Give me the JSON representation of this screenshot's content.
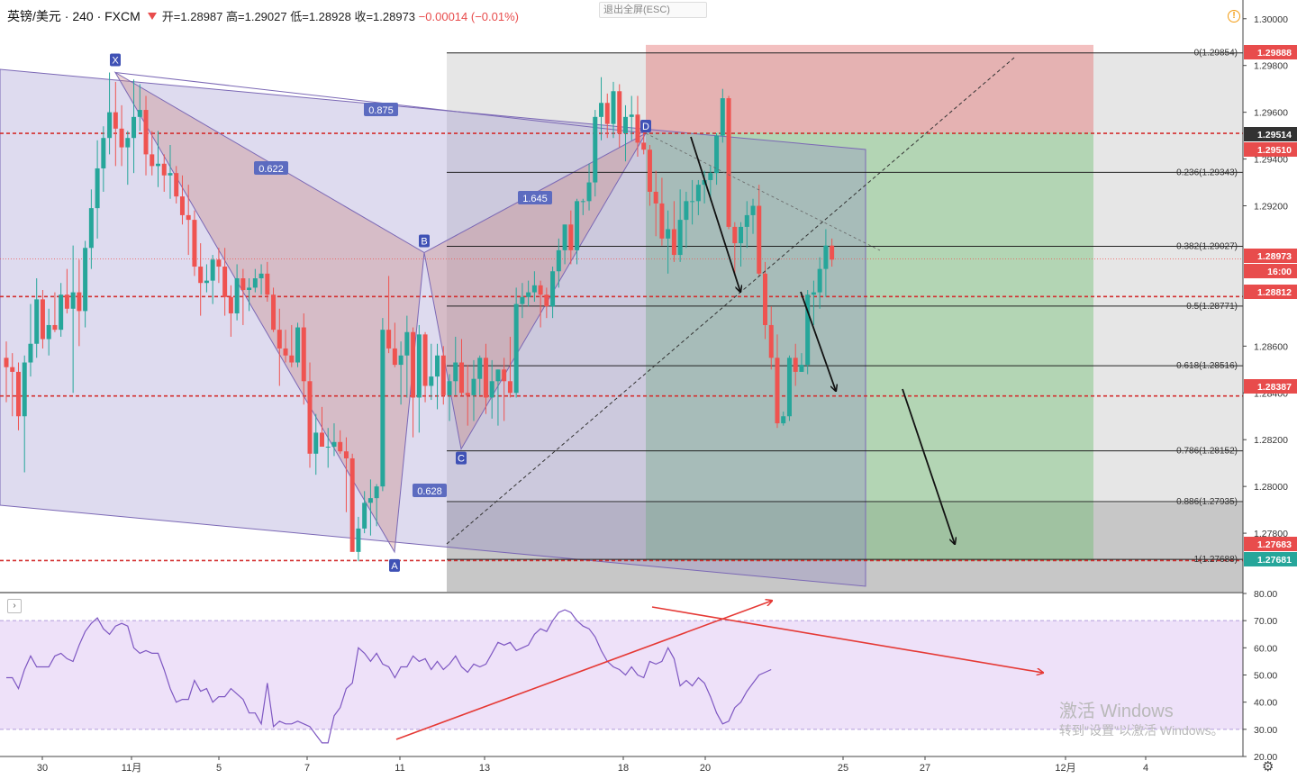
{
  "header": {
    "symbol": "英镑/美元 · 240 · FXCM",
    "open": "开=1.28987",
    "high": "高=1.29027",
    "low": "低=1.28928",
    "close": "收=1.28973",
    "change": "−0.00014 (−0.01%)"
  },
  "exit_fullscreen": "退出全屏(ESC)",
  "collapse_label": "›",
  "watermark": {
    "line1": "激活 Windows",
    "line2": "转到\"设置\"以激活 Windows。"
  },
  "colors": {
    "up": "#26a69a",
    "down": "#ef5350",
    "pattern": "#7b68b5",
    "rsi": "#7e57c2",
    "level": "#d32f2f"
  },
  "chart_data": [
    {
      "type": "candlestick",
      "symbol": "GBP/USD",
      "timeframe": "240",
      "source": "FXCM",
      "ylim": [
        1.2755,
        1.3008
      ],
      "y_ticks": [
        "1.30000",
        "1.29800",
        "1.29600",
        "1.29400",
        "1.29200",
        "1.28600",
        "1.28400",
        "1.28200",
        "1.28000",
        "1.27800"
      ],
      "x_ticks": [
        "30",
        "11月",
        "5",
        "7",
        "11",
        "13",
        "18",
        "20",
        "25",
        "27",
        "12月",
        "4"
      ],
      "price_labels": [
        {
          "value": "1.29888",
          "color": "#e84c4c"
        },
        {
          "value": "1.29514",
          "color": "#333333"
        },
        {
          "value": "1.29510",
          "color": "#e84c4c"
        },
        {
          "value": "1.28973",
          "color": "#e84c4c"
        },
        {
          "value": "16:00",
          "color": "#e84c4c"
        },
        {
          "value": "1.28812",
          "color": "#e84c4c"
        },
        {
          "value": "1.28387",
          "color": "#e84c4c"
        },
        {
          "value": "1.27683",
          "color": "#e84c4c"
        },
        {
          "value": "1.27681",
          "color": "#26a69a"
        }
      ],
      "horizontal_levels": [
        1.2951,
        1.28812,
        1.28387,
        1.27683
      ],
      "fib_levels": [
        {
          "label": "0(1.29854)",
          "value": 1.29854
        },
        {
          "label": "0.236(1.29343)",
          "value": 1.29343
        },
        {
          "label": "0.382(1.29027)",
          "value": 1.29027
        },
        {
          "label": "0.5(1.28771)",
          "value": 1.28771
        },
        {
          "label": "0.618(1.28516)",
          "value": 1.28516
        },
        {
          "label": "0.786(1.28152)",
          "value": 1.28152
        },
        {
          "label": "0.886(1.27935)",
          "value": 1.27935
        },
        {
          "label": "1(1.27688)",
          "value": 1.27688
        }
      ],
      "pattern_points": [
        {
          "label": "X",
          "price": 1.2977
        },
        {
          "label": "A",
          "price": 1.2772
        },
        {
          "label": "B",
          "price": 1.29
        },
        {
          "label": "C",
          "price": 1.2816
        },
        {
          "label": "D",
          "price": 1.2951
        }
      ],
      "pattern_ratios": [
        "0.875",
        "0.622",
        "1.645",
        "0.628"
      ],
      "position": {
        "entry": 1.29514,
        "stop": 1.29888,
        "target": 1.27681
      },
      "candles": [
        [
          1.2855,
          1.2862,
          1.2836,
          1.2851
        ],
        [
          1.2851,
          1.2857,
          1.283,
          1.2849
        ],
        [
          1.2849,
          1.2853,
          1.2824,
          1.283
        ],
        [
          1.283,
          1.2856,
          1.2806,
          1.2853
        ],
        [
          1.2853,
          1.2878,
          1.2847,
          1.2861
        ],
        [
          1.2861,
          1.2889,
          1.2855,
          1.288
        ],
        [
          1.288,
          1.2884,
          1.2859,
          1.2863
        ],
        [
          1.2863,
          1.2876,
          1.2856,
          1.2869
        ],
        [
          1.2869,
          1.2883,
          1.2866,
          1.2867
        ],
        [
          1.2867,
          1.2887,
          1.2864,
          1.2882
        ],
        [
          1.2882,
          1.2893,
          1.2874,
          1.2876
        ],
        [
          1.2876,
          1.2903,
          1.284,
          1.2883
        ],
        [
          1.2883,
          1.2897,
          1.286,
          1.2875
        ],
        [
          1.2875,
          1.2905,
          1.2868,
          1.2902
        ],
        [
          1.2902,
          1.2927,
          1.2893,
          1.2919
        ],
        [
          1.2919,
          1.2948,
          1.2906,
          1.2936
        ],
        [
          1.2936,
          1.2954,
          1.2926,
          1.2949
        ],
        [
          1.2949,
          1.2977,
          1.2942,
          1.296
        ],
        [
          1.296,
          1.2973,
          1.2937,
          1.2953
        ],
        [
          1.2953,
          1.2963,
          1.2937,
          1.2945
        ],
        [
          1.2945,
          1.2952,
          1.2929,
          1.2949
        ],
        [
          1.2949,
          1.2974,
          1.2934,
          1.2958
        ],
        [
          1.2958,
          1.2972,
          1.2952,
          1.2961
        ],
        [
          1.2961,
          1.2967,
          1.2933,
          1.2942
        ],
        [
          1.2942,
          1.2952,
          1.2933,
          1.2937
        ],
        [
          1.2937,
          1.2952,
          1.2928,
          1.2938
        ],
        [
          1.2938,
          1.2942,
          1.2926,
          1.2933
        ],
        [
          1.2933,
          1.2946,
          1.2923,
          1.2934
        ],
        [
          1.2934,
          1.2937,
          1.2921,
          1.2924
        ],
        [
          1.2924,
          1.2933,
          1.2912,
          1.2916
        ],
        [
          1.2916,
          1.2929,
          1.2899,
          1.2914
        ],
        [
          1.2914,
          1.2918,
          1.289,
          1.2894
        ],
        [
          1.2894,
          1.2904,
          1.2873,
          1.2887
        ],
        [
          1.2887,
          1.2895,
          1.2883,
          1.2888
        ],
        [
          1.2888,
          1.2899,
          1.2878,
          1.2897
        ],
        [
          1.2897,
          1.2902,
          1.2887,
          1.2894
        ],
        [
          1.2894,
          1.2902,
          1.2873,
          1.2881
        ],
        [
          1.2881,
          1.2886,
          1.2864,
          1.2874
        ],
        [
          1.2874,
          1.2895,
          1.2871,
          1.2889
        ],
        [
          1.2889,
          1.2893,
          1.2869,
          1.2884
        ],
        [
          1.2884,
          1.2889,
          1.2875,
          1.2885
        ],
        [
          1.2885,
          1.2893,
          1.2883,
          1.2889
        ],
        [
          1.2889,
          1.2895,
          1.2882,
          1.2891
        ],
        [
          1.2891,
          1.2896,
          1.2879,
          1.2882
        ],
        [
          1.2882,
          1.2885,
          1.2866,
          1.2867
        ],
        [
          1.2867,
          1.2876,
          1.2843,
          1.2859
        ],
        [
          1.2859,
          1.2867,
          1.2853,
          1.2856
        ],
        [
          1.2856,
          1.2869,
          1.2851,
          1.2853
        ],
        [
          1.2853,
          1.287,
          1.2851,
          1.2868
        ],
        [
          1.2868,
          1.2874,
          1.2835,
          1.2845
        ],
        [
          1.2845,
          1.2853,
          1.2808,
          1.2814
        ],
        [
          1.2814,
          1.2831,
          1.2805,
          1.2823
        ],
        [
          1.2823,
          1.2834,
          1.2817,
          1.2817
        ],
        [
          1.2817,
          1.2825,
          1.2808,
          1.2817
        ],
        [
          1.2817,
          1.2827,
          1.2813,
          1.2819
        ],
        [
          1.2819,
          1.2824,
          1.2814,
          1.2815
        ],
        [
          1.2815,
          1.2821,
          1.2789,
          1.2812
        ],
        [
          1.2812,
          1.2814,
          1.2773,
          1.2772
        ],
        [
          1.2772,
          1.2787,
          1.2768,
          1.2782
        ],
        [
          1.2782,
          1.2798,
          1.278,
          1.2793
        ],
        [
          1.2793,
          1.2803,
          1.2779,
          1.2795
        ],
        [
          1.2795,
          1.2801,
          1.2783,
          1.28
        ],
        [
          1.28,
          1.2872,
          1.2798,
          1.2867
        ],
        [
          1.2867,
          1.289,
          1.2857,
          1.2859
        ],
        [
          1.2859,
          1.287,
          1.2851,
          1.2852
        ],
        [
          1.2852,
          1.2862,
          1.2835,
          1.2856
        ],
        [
          1.2856,
          1.2873,
          1.2838,
          1.2866
        ],
        [
          1.2866,
          1.2868,
          1.2821,
          1.2838
        ],
        [
          1.2838,
          1.2869,
          1.2823,
          1.2865
        ],
        [
          1.2865,
          1.2866,
          1.2836,
          1.2843
        ],
        [
          1.2843,
          1.2861,
          1.2837,
          1.2847
        ],
        [
          1.2847,
          1.2861,
          1.2833,
          1.2856
        ],
        [
          1.2856,
          1.286,
          1.2835,
          1.2839
        ],
        [
          1.2839,
          1.2848,
          1.2828,
          1.2845
        ],
        [
          1.2845,
          1.2864,
          1.2839,
          1.2853
        ],
        [
          1.2853,
          1.2863,
          1.2839,
          1.284
        ],
        [
          1.284,
          1.2852,
          1.2826,
          1.2839
        ],
        [
          1.2839,
          1.2854,
          1.2828,
          1.2846
        ],
        [
          1.2846,
          1.2856,
          1.2839,
          1.2855
        ],
        [
          1.2855,
          1.2861,
          1.2831,
          1.2838
        ],
        [
          1.2838,
          1.2854,
          1.2829,
          1.2845
        ],
        [
          1.2845,
          1.285,
          1.2826,
          1.285
        ],
        [
          1.285,
          1.2855,
          1.2828,
          1.2845
        ],
        [
          1.2845,
          1.2864,
          1.2838,
          1.284
        ],
        [
          1.284,
          1.2885,
          1.2838,
          1.2878
        ],
        [
          1.2878,
          1.2887,
          1.2872,
          1.2881
        ],
        [
          1.2881,
          1.2888,
          1.2877,
          1.2883
        ],
        [
          1.2883,
          1.2892,
          1.2879,
          1.2886
        ],
        [
          1.2886,
          1.2888,
          1.2868,
          1.2882
        ],
        [
          1.2882,
          1.2885,
          1.2872,
          1.2877
        ],
        [
          1.2877,
          1.2894,
          1.2872,
          1.2892
        ],
        [
          1.2892,
          1.2906,
          1.2885,
          1.2901
        ],
        [
          1.2901,
          1.2912,
          1.2895,
          1.2912
        ],
        [
          1.2912,
          1.2918,
          1.2895,
          1.2901
        ],
        [
          1.2901,
          1.2923,
          1.2895,
          1.2922
        ],
        [
          1.2922,
          1.2923,
          1.2916,
          1.2922
        ],
        [
          1.2922,
          1.2938,
          1.2918,
          1.293
        ],
        [
          1.293,
          1.2961,
          1.2924,
          1.2958
        ],
        [
          1.2958,
          1.2975,
          1.2948,
          1.2964
        ],
        [
          1.2964,
          1.2968,
          1.2949,
          1.2955
        ],
        [
          1.2955,
          1.2973,
          1.2949,
          1.2969
        ],
        [
          1.2969,
          1.2972,
          1.2945,
          1.2951
        ],
        [
          1.2951,
          1.2963,
          1.2939,
          1.2958
        ],
        [
          1.2958,
          1.2967,
          1.2948,
          1.2959
        ],
        [
          1.2959,
          1.2967,
          1.2941,
          1.2947
        ],
        [
          1.2947,
          1.2954,
          1.2942,
          1.2944
        ],
        [
          1.2944,
          1.2946,
          1.292,
          1.2926
        ],
        [
          1.2926,
          1.2935,
          1.2907,
          1.2921
        ],
        [
          1.2921,
          1.2932,
          1.2903,
          1.2906
        ],
        [
          1.2906,
          1.2918,
          1.2891,
          1.291
        ],
        [
          1.291,
          1.2922,
          1.2896,
          1.2899
        ],
        [
          1.2899,
          1.2927,
          1.2896,
          1.2914
        ],
        [
          1.2914,
          1.2926,
          1.2902,
          1.2922
        ],
        [
          1.2922,
          1.2931,
          1.2912,
          1.2922
        ],
        [
          1.2922,
          1.2931,
          1.2916,
          1.2929
        ],
        [
          1.2929,
          1.2935,
          1.2921,
          1.2931
        ],
        [
          1.2931,
          1.2937,
          1.2922,
          1.2934
        ],
        [
          1.2934,
          1.2951,
          1.2929,
          1.295
        ],
        [
          1.295,
          1.297,
          1.2947,
          1.2966
        ],
        [
          1.2966,
          1.2967,
          1.291,
          1.2911
        ],
        [
          1.2911,
          1.2913,
          1.2891,
          1.2904
        ],
        [
          1.2904,
          1.2913,
          1.2894,
          1.2911
        ],
        [
          1.2911,
          1.2922,
          1.2902,
          1.2916
        ],
        [
          1.2916,
          1.2923,
          1.2908,
          1.292
        ],
        [
          1.292,
          1.2929,
          1.289,
          1.2891
        ],
        [
          1.2891,
          1.2896,
          1.2863,
          1.2869
        ],
        [
          1.2869,
          1.2877,
          1.285,
          1.2855
        ],
        [
          1.2855,
          1.2865,
          1.2825,
          1.2827
        ],
        [
          1.2827,
          1.2832,
          1.2826,
          1.283
        ],
        [
          1.283,
          1.2856,
          1.2828,
          1.2855
        ],
        [
          1.2855,
          1.2861,
          1.2843,
          1.2849
        ],
        [
          1.2849,
          1.2857,
          1.2849,
          1.2852
        ],
        [
          1.2852,
          1.2884,
          1.2848,
          1.2882
        ],
        [
          1.2882,
          1.2888,
          1.2869,
          1.2883
        ],
        [
          1.2883,
          1.2898,
          1.2876,
          1.2893
        ],
        [
          1.2893,
          1.291,
          1.2881,
          1.2903
        ],
        [
          1.2903,
          1.2906,
          1.2894,
          1.2897
        ]
      ]
    },
    {
      "type": "line",
      "indicator": "RSI",
      "ylim": [
        20,
        80
      ],
      "y_ticks": [
        "80.00",
        "70.00",
        "60.00",
        "50.00",
        "40.00",
        "30.00",
        "20.00"
      ],
      "band": [
        30,
        70
      ],
      "values": [
        49,
        49,
        45,
        52,
        57,
        53,
        53,
        53,
        57,
        58,
        56,
        55,
        61,
        66,
        69,
        71,
        67,
        65,
        68,
        69,
        68,
        60,
        58,
        59,
        58,
        58,
        52,
        45,
        40,
        41,
        41,
        48,
        44,
        45,
        40,
        42,
        42,
        45,
        43,
        41,
        36,
        36,
        32,
        47,
        31,
        33,
        32,
        32,
        33,
        32,
        31,
        28,
        25,
        25,
        35,
        38,
        45,
        47,
        60,
        58,
        55,
        58,
        54,
        53,
        49,
        53,
        53,
        57,
        55,
        56,
        52,
        55,
        52,
        54,
        57,
        53,
        51,
        54,
        53,
        54,
        58,
        62,
        61,
        62,
        59,
        60,
        61,
        65,
        67,
        66,
        70,
        73,
        74,
        73,
        70,
        68,
        67,
        64,
        59,
        55,
        53,
        52,
        50,
        53,
        50,
        49,
        55,
        54,
        55,
        60,
        56,
        46,
        48,
        46,
        49,
        47,
        42,
        36,
        32,
        33,
        38,
        40,
        44,
        47,
        50,
        51,
        52
      ]
    }
  ]
}
